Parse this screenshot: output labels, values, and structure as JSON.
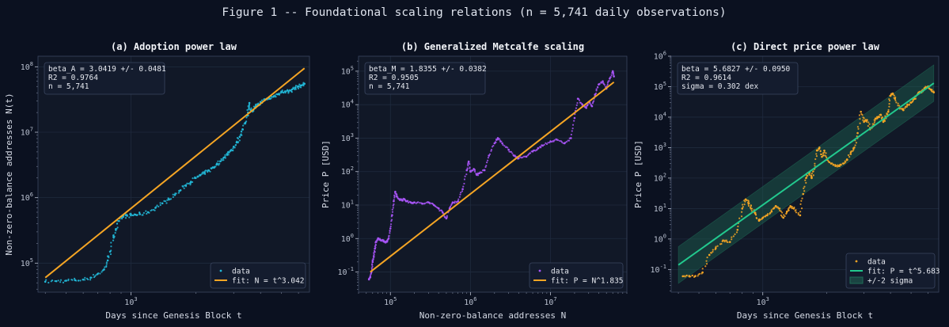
{
  "figure": {
    "title": "Figure 1 -- Foundational scaling relations  (n = 5,741 daily observations)",
    "background": "#0b1120",
    "panel_background": "#111827",
    "grid_color": "#1f2a3e"
  },
  "chart_data": [
    {
      "type": "scatter",
      "title": "(a) Adoption power law",
      "xlabel": "Days since Genesis Block  t",
      "ylabel": "Non-zero-balance addresses  N(t)",
      "xscale": "log",
      "yscale": "log",
      "xlim": [
        370,
        6750
      ],
      "ylim": [
        36000,
        145000000
      ],
      "xticks": [
        {
          "value": 1000,
          "label": "10^3"
        }
      ],
      "yticks": [
        {
          "value": 100000,
          "label": "10^5"
        },
        {
          "value": 1000000,
          "label": "10^6"
        },
        {
          "value": 10000000,
          "label": "10^7"
        },
        {
          "value": 100000000,
          "label": "10^8"
        }
      ],
      "annotation": [
        "beta_A = 3.0419 +/- 0.0481",
        "R2 = 0.9764",
        "n = 5,741"
      ],
      "legend_position": "lower-right",
      "series": [
        {
          "name": "data",
          "kind": "scatter",
          "color": "#22b8d8",
          "points": [
            [
              400,
              52000
            ],
            [
              450,
              53000
            ],
            [
              500,
              54000
            ],
            [
              550,
              55000
            ],
            [
              600,
              56000
            ],
            [
              650,
              60000
            ],
            [
              700,
              68000
            ],
            [
              750,
              80000
            ],
            [
              780,
              110000
            ],
            [
              800,
              150000
            ],
            [
              830,
              250000
            ],
            [
              850,
              330000
            ],
            [
              880,
              440000
            ],
            [
              920,
              510000
            ],
            [
              960,
              530000
            ],
            [
              1000,
              540000
            ],
            [
              1050,
              550000
            ],
            [
              1100,
              560000
            ],
            [
              1200,
              600000
            ],
            [
              1300,
              700000
            ],
            [
              1400,
              820000
            ],
            [
              1500,
              950000
            ],
            [
              1600,
              1100000
            ],
            [
              1700,
              1300000
            ],
            [
              1800,
              1550000
            ],
            [
              1900,
              1750000
            ],
            [
              2000,
              2000000
            ],
            [
              2100,
              2200000
            ],
            [
              2200,
              2400000
            ],
            [
              2300,
              2600000
            ],
            [
              2400,
              2900000
            ],
            [
              2500,
              3200000
            ],
            [
              2600,
              3600000
            ],
            [
              2700,
              4100000
            ],
            [
              2800,
              4600000
            ],
            [
              2900,
              5200000
            ],
            [
              3000,
              6000000
            ],
            [
              3100,
              7000000
            ],
            [
              3200,
              8500000
            ],
            [
              3300,
              11000000
            ],
            [
              3400,
              14000000
            ],
            [
              3500,
              20000000
            ],
            [
              3550,
              28000000
            ],
            [
              3600,
              22000000
            ],
            [
              3700,
              22000000
            ],
            [
              3800,
              25000000
            ],
            [
              3900,
              26000000
            ],
            [
              4000,
              29000000
            ],
            [
              4200,
              31000000
            ],
            [
              4400,
              33000000
            ],
            [
              4600,
              35000000
            ],
            [
              4800,
              38000000
            ],
            [
              5000,
              41000000
            ],
            [
              5200,
              42000000
            ],
            [
              5400,
              42000000
            ],
            [
              5600,
              45000000
            ],
            [
              5800,
              48000000
            ],
            [
              6000,
              50000000
            ],
            [
              6200,
              52000000
            ],
            [
              6400,
              55000000
            ]
          ]
        },
        {
          "name": "fit: N = t^3.042",
          "kind": "line",
          "color": "#f5a524",
          "points": [
            [
              400,
              60000
            ],
            [
              6400,
              95000000
            ]
          ]
        }
      ]
    },
    {
      "type": "scatter",
      "title": "(b) Generalized Metcalfe scaling",
      "xlabel": "Non-zero-balance addresses  N",
      "ylabel": "Price P  [USD]",
      "xscale": "log",
      "yscale": "log",
      "xlim": [
        40000,
        90000000
      ],
      "ylim": [
        0.025,
        280000
      ],
      "xticks": [
        {
          "value": 100000,
          "label": "10^5"
        },
        {
          "value": 1000000,
          "label": "10^6"
        },
        {
          "value": 10000000,
          "label": "10^7"
        }
      ],
      "yticks": [
        {
          "value": 0.1,
          "label": "10^-1"
        },
        {
          "value": 1,
          "label": "10^0"
        },
        {
          "value": 10,
          "label": "10^1"
        },
        {
          "value": 100,
          "label": "10^2"
        },
        {
          "value": 1000,
          "label": "10^3"
        },
        {
          "value": 10000,
          "label": "10^4"
        },
        {
          "value": 100000,
          "label": "10^5"
        }
      ],
      "annotation": [
        "beta_M = 1.8355 +/- 0.0382",
        "R2 = 0.9505",
        "n = 5,741"
      ],
      "legend_position": "lower-right",
      "series": [
        {
          "name": "data",
          "kind": "scatter",
          "color": "#a855f7",
          "points": [
            [
              54000,
              0.06
            ],
            [
              56000,
              0.07
            ],
            [
              58000,
              0.1
            ],
            [
              60000,
              0.2
            ],
            [
              62000,
              0.3
            ],
            [
              64000,
              0.5
            ],
            [
              66000,
              0.8
            ],
            [
              70000,
              1.0
            ],
            [
              75000,
              0.9
            ],
            [
              80000,
              0.9
            ],
            [
              85000,
              0.8
            ],
            [
              90000,
              0.8
            ],
            [
              95000,
              1.0
            ],
            [
              100000,
              2.0
            ],
            [
              105000,
              5.0
            ],
            [
              110000,
              13
            ],
            [
              115000,
              25
            ],
            [
              120000,
              18
            ],
            [
              130000,
              15
            ],
            [
              140000,
              14
            ],
            [
              150000,
              15
            ],
            [
              160000,
              13
            ],
            [
              180000,
              12
            ],
            [
              200000,
              12
            ],
            [
              250000,
              11
            ],
            [
              300000,
              12
            ],
            [
              350000,
              10
            ],
            [
              400000,
              8
            ],
            [
              450000,
              6
            ],
            [
              500000,
              4
            ],
            [
              550000,
              8
            ],
            [
              600000,
              12
            ],
            [
              700000,
              13
            ],
            [
              800000,
              30
            ],
            [
              900000,
              110
            ],
            [
              950000,
              200
            ],
            [
              1000000,
              100
            ],
            [
              1100000,
              120
            ],
            [
              1200000,
              80
            ],
            [
              1300000,
              90
            ],
            [
              1500000,
              110
            ],
            [
              1700000,
              300
            ],
            [
              2000000,
              700
            ],
            [
              2200000,
              1000
            ],
            [
              2500000,
              700
            ],
            [
              3000000,
              450
            ],
            [
              3500000,
              300
            ],
            [
              4000000,
              250
            ],
            [
              5000000,
              280
            ],
            [
              6000000,
              400
            ],
            [
              7000000,
              500
            ],
            [
              8000000,
              600
            ],
            [
              10000000,
              800
            ],
            [
              12000000,
              900
            ],
            [
              15000000,
              700
            ],
            [
              18000000,
              1000
            ],
            [
              20000000,
              4000
            ],
            [
              22000000,
              15000
            ],
            [
              25000000,
              10000
            ],
            [
              28000000,
              8000
            ],
            [
              30000000,
              12000
            ],
            [
              33000000,
              9000
            ],
            [
              36000000,
              20000
            ],
            [
              40000000,
              40000
            ],
            [
              45000000,
              50000
            ],
            [
              50000000,
              30000
            ],
            [
              55000000,
              60000
            ],
            [
              60000000,
              100000
            ],
            [
              62000000,
              70000
            ]
          ]
        },
        {
          "name": "fit: P = N^1.835",
          "kind": "line",
          "color": "#f5a524",
          "points": [
            [
              56000,
              0.1
            ],
            [
              62000000,
              47000
            ]
          ]
        }
      ]
    },
    {
      "type": "scatter",
      "title": "(c) Direct price power law",
      "xlabel": "Days since Genesis Block  t",
      "ylabel": "Price P  [USD]",
      "xscale": "log",
      "yscale": "log",
      "xlim": [
        370,
        6750
      ],
      "ylim": [
        0.018,
        1000000
      ],
      "xticks": [
        {
          "value": 1000,
          "label": "10^3"
        }
      ],
      "yticks": [
        {
          "value": 0.1,
          "label": "10^-1"
        },
        {
          "value": 1,
          "label": "10^0"
        },
        {
          "value": 10,
          "label": "10^1"
        },
        {
          "value": 100,
          "label": "10^2"
        },
        {
          "value": 1000,
          "label": "10^3"
        },
        {
          "value": 10000,
          "label": "10^4"
        },
        {
          "value": 100000,
          "label": "10^5"
        },
        {
          "value": 1000000,
          "label": "10^6"
        }
      ],
      "annotation": [
        "beta = 5.6827 +/- 0.0950",
        "R2 = 0.9614",
        "sigma = 0.302 dex"
      ],
      "legend_position": "lower-right",
      "series": [
        {
          "name": "data",
          "kind": "scatter",
          "color": "#f5a524",
          "points": [
            [
              420,
              0.06
            ],
            [
              450,
              0.06
            ],
            [
              480,
              0.06
            ],
            [
              520,
              0.08
            ],
            [
              560,
              0.3
            ],
            [
              600,
              0.5
            ],
            [
              650,
              0.9
            ],
            [
              700,
              0.8
            ],
            [
              760,
              2.0
            ],
            [
              800,
              10
            ],
            [
              830,
              20
            ],
            [
              860,
              15
            ],
            [
              880,
              10
            ],
            [
              920,
              7
            ],
            [
              960,
              4
            ],
            [
              1000,
              5
            ],
            [
              1050,
              6
            ],
            [
              1100,
              8
            ],
            [
              1150,
              12
            ],
            [
              1200,
              10
            ],
            [
              1250,
              5
            ],
            [
              1300,
              8
            ],
            [
              1350,
              12
            ],
            [
              1400,
              10
            ],
            [
              1500,
              6
            ],
            [
              1550,
              30
            ],
            [
              1600,
              100
            ],
            [
              1650,
              150
            ],
            [
              1700,
              100
            ],
            [
              1750,
              200
            ],
            [
              1800,
              800
            ],
            [
              1850,
              1000
            ],
            [
              1900,
              500
            ],
            [
              1950,
              800
            ],
            [
              2000,
              400
            ],
            [
              2100,
              300
            ],
            [
              2200,
              250
            ],
            [
              2300,
              250
            ],
            [
              2400,
              300
            ],
            [
              2500,
              400
            ],
            [
              2600,
              700
            ],
            [
              2700,
              1000
            ],
            [
              2800,
              3000
            ],
            [
              2900,
              15000
            ],
            [
              3000,
              7000
            ],
            [
              3100,
              8000
            ],
            [
              3200,
              4000
            ],
            [
              3300,
              5000
            ],
            [
              3400,
              9000
            ],
            [
              3500,
              10000
            ],
            [
              3600,
              12000
            ],
            [
              3700,
              7000
            ],
            [
              3800,
              10000
            ],
            [
              3900,
              15000
            ],
            [
              4000,
              50000
            ],
            [
              4100,
              60000
            ],
            [
              4200,
              40000
            ],
            [
              4400,
              20000
            ],
            [
              4600,
              17000
            ],
            [
              4800,
              25000
            ],
            [
              5000,
              30000
            ],
            [
              5200,
              40000
            ],
            [
              5400,
              60000
            ],
            [
              5600,
              70000
            ],
            [
              5800,
              90000
            ],
            [
              6000,
              100000
            ],
            [
              6200,
              80000
            ],
            [
              6400,
              65000
            ]
          ]
        },
        {
          "name": "fit: P = t^5.683",
          "kind": "line",
          "color": "#22c98e",
          "points": [
            [
              400,
              0.14
            ],
            [
              6400,
              130000
            ]
          ]
        },
        {
          "name": "+/-2 sigma",
          "kind": "band",
          "color": "#1f6b55",
          "lower": [
            [
              400,
              0.035
            ],
            [
              6400,
              33000
            ]
          ],
          "upper": [
            [
              400,
              0.56
            ],
            [
              6400,
              520000
            ]
          ]
        }
      ]
    }
  ]
}
